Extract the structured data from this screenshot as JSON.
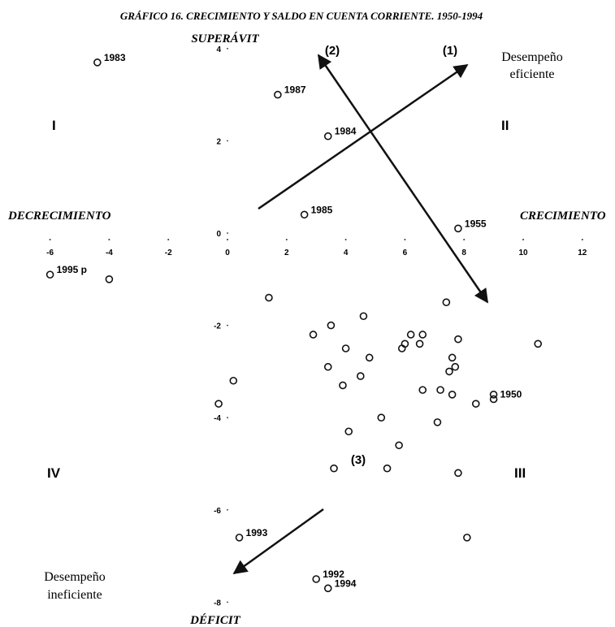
{
  "chart_data": {
    "type": "scatter",
    "title": "GRÁFICO 16. CRECIMIENTO Y SALDO EN CUENTA CORRIENTE. 1950-1994",
    "xlabel_left": "DECRECIMIENTO",
    "xlabel_right": "CRECIMIENTO",
    "ylabel_top": "SUPERÁVIT",
    "ylabel_bottom": "DÉFICIT",
    "x_ticks": [
      "-6",
      "-4",
      "-2",
      "0",
      "2",
      "4",
      "6",
      "8",
      "10",
      "12"
    ],
    "y_ticks": [
      "4",
      "2",
      "0",
      "-2",
      "-4",
      "-6",
      "-8"
    ],
    "xlim": [
      -6,
      12
    ],
    "ylim": [
      -8,
      4
    ],
    "grid": false,
    "quadrants": [
      "I",
      "II",
      "III",
      "IV"
    ],
    "annotations": {
      "efficient": [
        "Desempeño",
        "eficiente"
      ],
      "inefficient": [
        "Desempeño",
        "ineficiente"
      ],
      "arrow1": "(1)",
      "arrow2": "(2)",
      "arrow3": "(3)"
    },
    "labeled_points": [
      {
        "label": "1983",
        "x": -4.4,
        "y": 3.7
      },
      {
        "label": "1987",
        "x": 1.7,
        "y": 3.0
      },
      {
        "label": "1984",
        "x": 3.4,
        "y": 2.1
      },
      {
        "label": "1985",
        "x": 2.6,
        "y": 0.4
      },
      {
        "label": "1955",
        "x": 7.8,
        "y": 0.1
      },
      {
        "label": "1995 p",
        "x": -6.0,
        "y": -0.9
      },
      {
        "label": "1950",
        "x": 9.0,
        "y": -3.6
      },
      {
        "label": "1993",
        "x": 0.4,
        "y": -6.6
      },
      {
        "label": "1992",
        "x": 3.0,
        "y": -7.5
      },
      {
        "label": "1994",
        "x": 3.4,
        "y": -7.7
      }
    ],
    "points": [
      {
        "x": -4.0,
        "y": -1.0
      },
      {
        "x": 1.4,
        "y": -1.4
      },
      {
        "x": 7.4,
        "y": -1.5
      },
      {
        "x": 4.6,
        "y": -1.8
      },
      {
        "x": 3.5,
        "y": -2.0
      },
      {
        "x": 2.9,
        "y": -2.2
      },
      {
        "x": 6.2,
        "y": -2.2
      },
      {
        "x": 6.6,
        "y": -2.2
      },
      {
        "x": 6.0,
        "y": -2.4
      },
      {
        "x": 6.5,
        "y": -2.4
      },
      {
        "x": 7.8,
        "y": -2.3
      },
      {
        "x": 5.9,
        "y": -2.5
      },
      {
        "x": 4.0,
        "y": -2.5
      },
      {
        "x": 10.5,
        "y": -2.4
      },
      {
        "x": 4.8,
        "y": -2.7
      },
      {
        "x": 7.6,
        "y": -2.7
      },
      {
        "x": 3.4,
        "y": -2.9
      },
      {
        "x": 7.7,
        "y": -2.9
      },
      {
        "x": 7.5,
        "y": -3.0
      },
      {
        "x": 4.5,
        "y": -3.1
      },
      {
        "x": 0.2,
        "y": -3.2
      },
      {
        "x": 3.9,
        "y": -3.3
      },
      {
        "x": 6.6,
        "y": -3.4
      },
      {
        "x": 7.2,
        "y": -3.4
      },
      {
        "x": 7.6,
        "y": -3.5
      },
      {
        "x": 9.0,
        "y": -3.5
      },
      {
        "x": 8.4,
        "y": -3.7
      },
      {
        "x": -0.3,
        "y": -3.7
      },
      {
        "x": 5.2,
        "y": -4.0
      },
      {
        "x": 7.1,
        "y": -4.1
      },
      {
        "x": 4.1,
        "y": -4.3
      },
      {
        "x": 5.8,
        "y": -4.6
      },
      {
        "x": 3.6,
        "y": -5.1
      },
      {
        "x": 5.4,
        "y": -5.1
      },
      {
        "x": 7.8,
        "y": -5.2
      },
      {
        "x": 8.1,
        "y": -6.6
      }
    ]
  }
}
